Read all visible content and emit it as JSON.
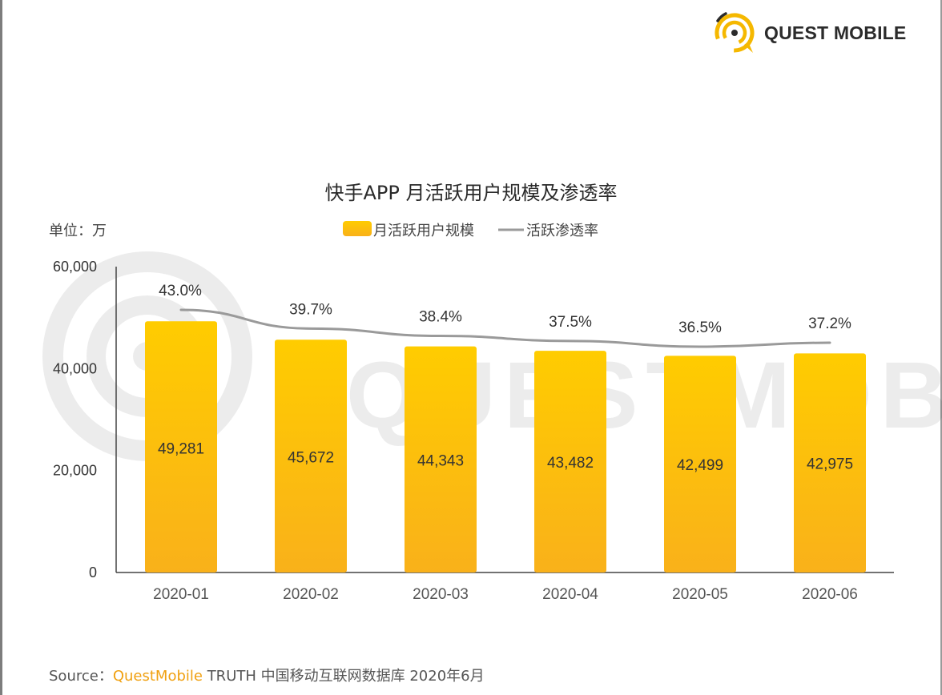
{
  "logo": {
    "text": "QUEST MOBILE",
    "icon": "quest-mobile-logo-icon",
    "color": "#f5b800"
  },
  "watermark": {
    "text": "QUESTMOBILE"
  },
  "colors": {
    "bar_top": "#ffcc00",
    "bar_bottom": "#f9b11a",
    "line": "#9a9a9a",
    "axis": "#444444",
    "source_brand": "#f0a010"
  },
  "chart_data": {
    "type": "bar",
    "title": "快手APP 月活跃用户规模及渗透率",
    "unit_label": "单位：万",
    "categories": [
      "2020-01",
      "2020-02",
      "2020-03",
      "2020-04",
      "2020-05",
      "2020-06"
    ],
    "series": [
      {
        "name": "月活跃用户规模",
        "type": "bar",
        "values": [
          49281,
          45672,
          44343,
          43482,
          42499,
          42975
        ],
        "labels": [
          "49,281",
          "45,672",
          "44,343",
          "43,482",
          "42,499",
          "42,975"
        ]
      },
      {
        "name": "活跃渗透率",
        "type": "line",
        "values": [
          43.0,
          39.7,
          38.4,
          37.5,
          36.5,
          37.2
        ],
        "labels": [
          "43.0%",
          "39.7%",
          "38.4%",
          "37.5%",
          "36.5%",
          "37.2%"
        ]
      }
    ],
    "ylim": [
      0,
      60000
    ],
    "yticks": [
      0,
      20000,
      40000,
      60000
    ],
    "ytick_labels": [
      "0",
      "20,000",
      "40,000",
      "60,000"
    ],
    "legend_position": "top-center",
    "grid": false
  },
  "source": {
    "prefix": "Source：",
    "brand": "QuestMobile",
    "rest": " TRUTH 中国移动互联网数据库 2020年6月"
  }
}
